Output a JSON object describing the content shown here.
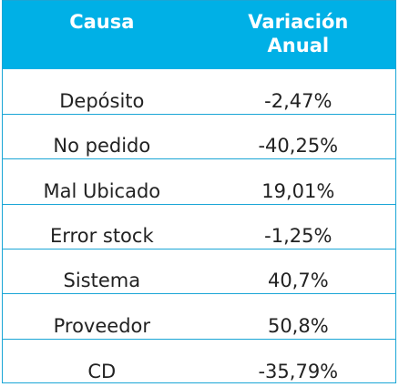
{
  "table": {
    "headers": [
      "Causa",
      "Variación Anual"
    ],
    "rows": [
      [
        "Depósito",
        "-2,47%"
      ],
      [
        "No pedido",
        "-40,25%"
      ],
      [
        "Mal Ubicado",
        "19,01%"
      ],
      [
        "Error stock",
        "-1,25%"
      ],
      [
        "Sistema",
        "40,7%"
      ],
      [
        "Proveedor",
        "50,8%"
      ],
      [
        "CD",
        "-35,79%"
      ]
    ]
  },
  "colors": {
    "header_bg": "#00b0e6",
    "border": "#1aa6d6",
    "header_text": "#ffffff",
    "cell_text": "#222222"
  }
}
